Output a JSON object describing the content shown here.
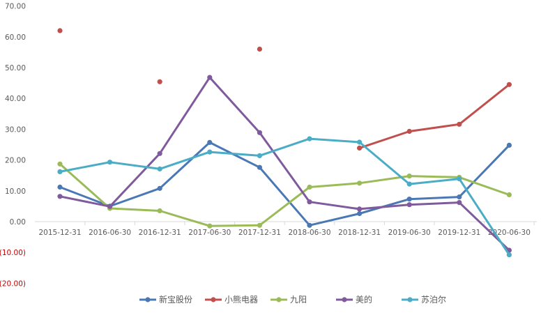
{
  "chart_data": {
    "type": "line",
    "title": "",
    "xlabel": "",
    "ylabel": "",
    "categories": [
      "2015-12-31",
      "2016-06-30",
      "2016-12-31",
      "2017-06-30",
      "2017-12-31",
      "2018-06-30",
      "2018-12-31",
      "2019-06-30",
      "2019-12-31",
      "2020-06-30"
    ],
    "y_ticks": [
      "70.00",
      "60.00",
      "50.00",
      "40.00",
      "30.00",
      "20.00",
      "10.00",
      "0.00",
      "(10.00)",
      "(20.00)"
    ],
    "y_tick_values": [
      70,
      60,
      50,
      40,
      30,
      20,
      10,
      0,
      -10,
      -20
    ],
    "ylim": [
      -20,
      70
    ],
    "grid": false,
    "legend_position": "bottom",
    "negative_tick_color": "#c00000",
    "series": [
      {
        "name": "新宝股份",
        "color": "#4a78b5",
        "values": [
          11.2,
          5.0,
          10.8,
          25.7,
          17.6,
          -1.2,
          2.6,
          7.3,
          8.0,
          24.8
        ]
      },
      {
        "name": "小熊电器",
        "color": "#c0504d",
        "values": [
          62.0,
          null,
          45.4,
          null,
          56.0,
          null,
          23.9,
          29.3,
          31.6,
          44.5
        ]
      },
      {
        "name": "九阳",
        "color": "#9bbb59",
        "values": [
          18.7,
          4.3,
          3.5,
          -1.4,
          -1.2,
          11.2,
          12.5,
          14.8,
          14.4,
          8.7
        ]
      },
      {
        "name": "美的",
        "color": "#7f5a9c",
        "values": [
          8.2,
          4.9,
          22.1,
          46.8,
          28.9,
          6.4,
          4.1,
          5.5,
          6.2,
          -9.3
        ]
      },
      {
        "name": "苏泊尔",
        "color": "#4bacc6",
        "values": [
          16.2,
          19.3,
          17.1,
          22.6,
          21.4,
          26.9,
          25.8,
          12.2,
          13.9,
          -10.8
        ]
      }
    ]
  }
}
